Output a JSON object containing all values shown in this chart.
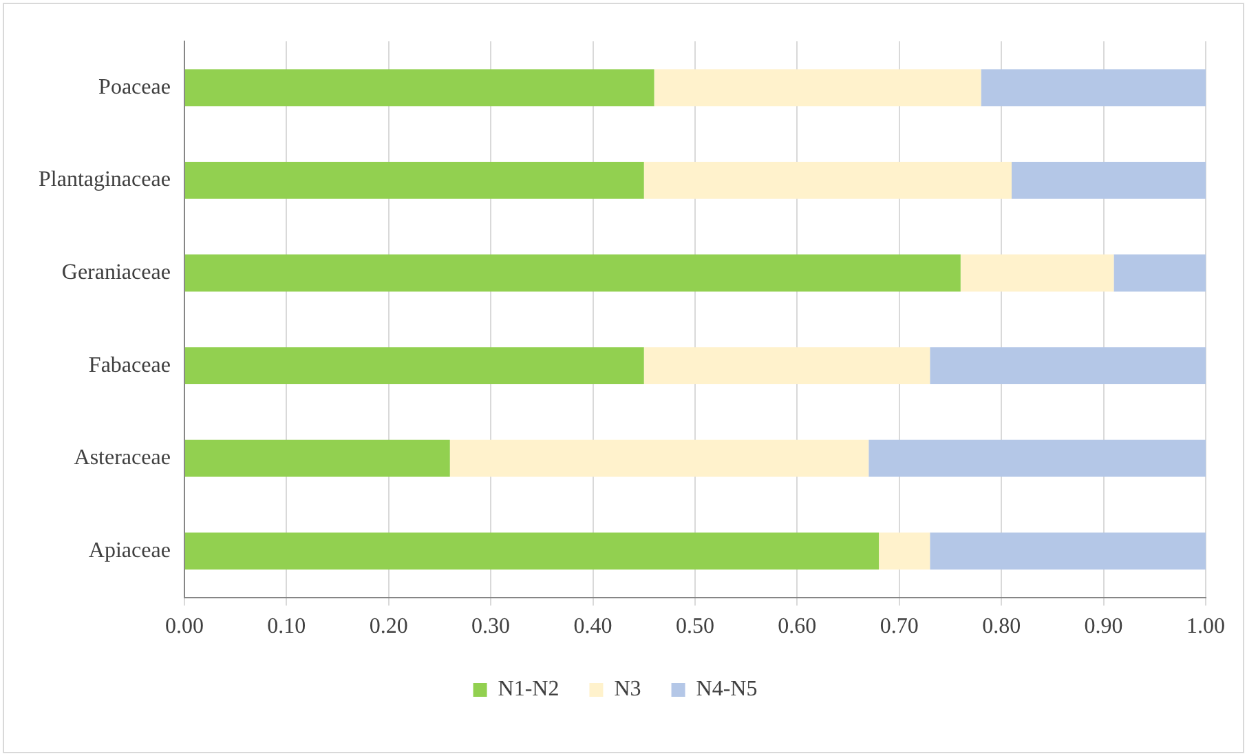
{
  "chart_data": {
    "type": "bar",
    "orientation": "horizontal",
    "stacked": true,
    "categories": [
      "Poaceae",
      "Plantaginaceae",
      "Geraniaceae",
      "Fabaceae",
      "Asteraceae",
      "Apiaceae"
    ],
    "series": [
      {
        "name": "N1-N2",
        "color": "#92d050",
        "values": [
          0.46,
          0.45,
          0.76,
          0.45,
          0.26,
          0.68
        ]
      },
      {
        "name": "N3",
        "color": "#fff2cc",
        "values": [
          0.32,
          0.36,
          0.15,
          0.28,
          0.41,
          0.05
        ]
      },
      {
        "name": "N4-N5",
        "color": "#b4c7e7",
        "values": [
          0.22,
          0.19,
          0.09,
          0.27,
          0.33,
          0.27
        ]
      }
    ],
    "xlim": [
      0,
      1
    ],
    "xticks": [
      {
        "value": 0,
        "label": "0.00"
      },
      {
        "value": 0.1,
        "label": "0.10"
      },
      {
        "value": 0.2,
        "label": "0.20"
      },
      {
        "value": 0.3,
        "label": "0.30"
      },
      {
        "value": 0.4,
        "label": "0.40"
      },
      {
        "value": 0.5,
        "label": "0.50"
      },
      {
        "value": 0.6,
        "label": "0.60"
      },
      {
        "value": 0.7,
        "label": "0.70"
      },
      {
        "value": 0.8,
        "label": "0.80"
      },
      {
        "value": 0.9,
        "label": "0.90"
      },
      {
        "value": 1,
        "label": "1.00"
      }
    ],
    "grid": "x",
    "legend": "bottom"
  }
}
